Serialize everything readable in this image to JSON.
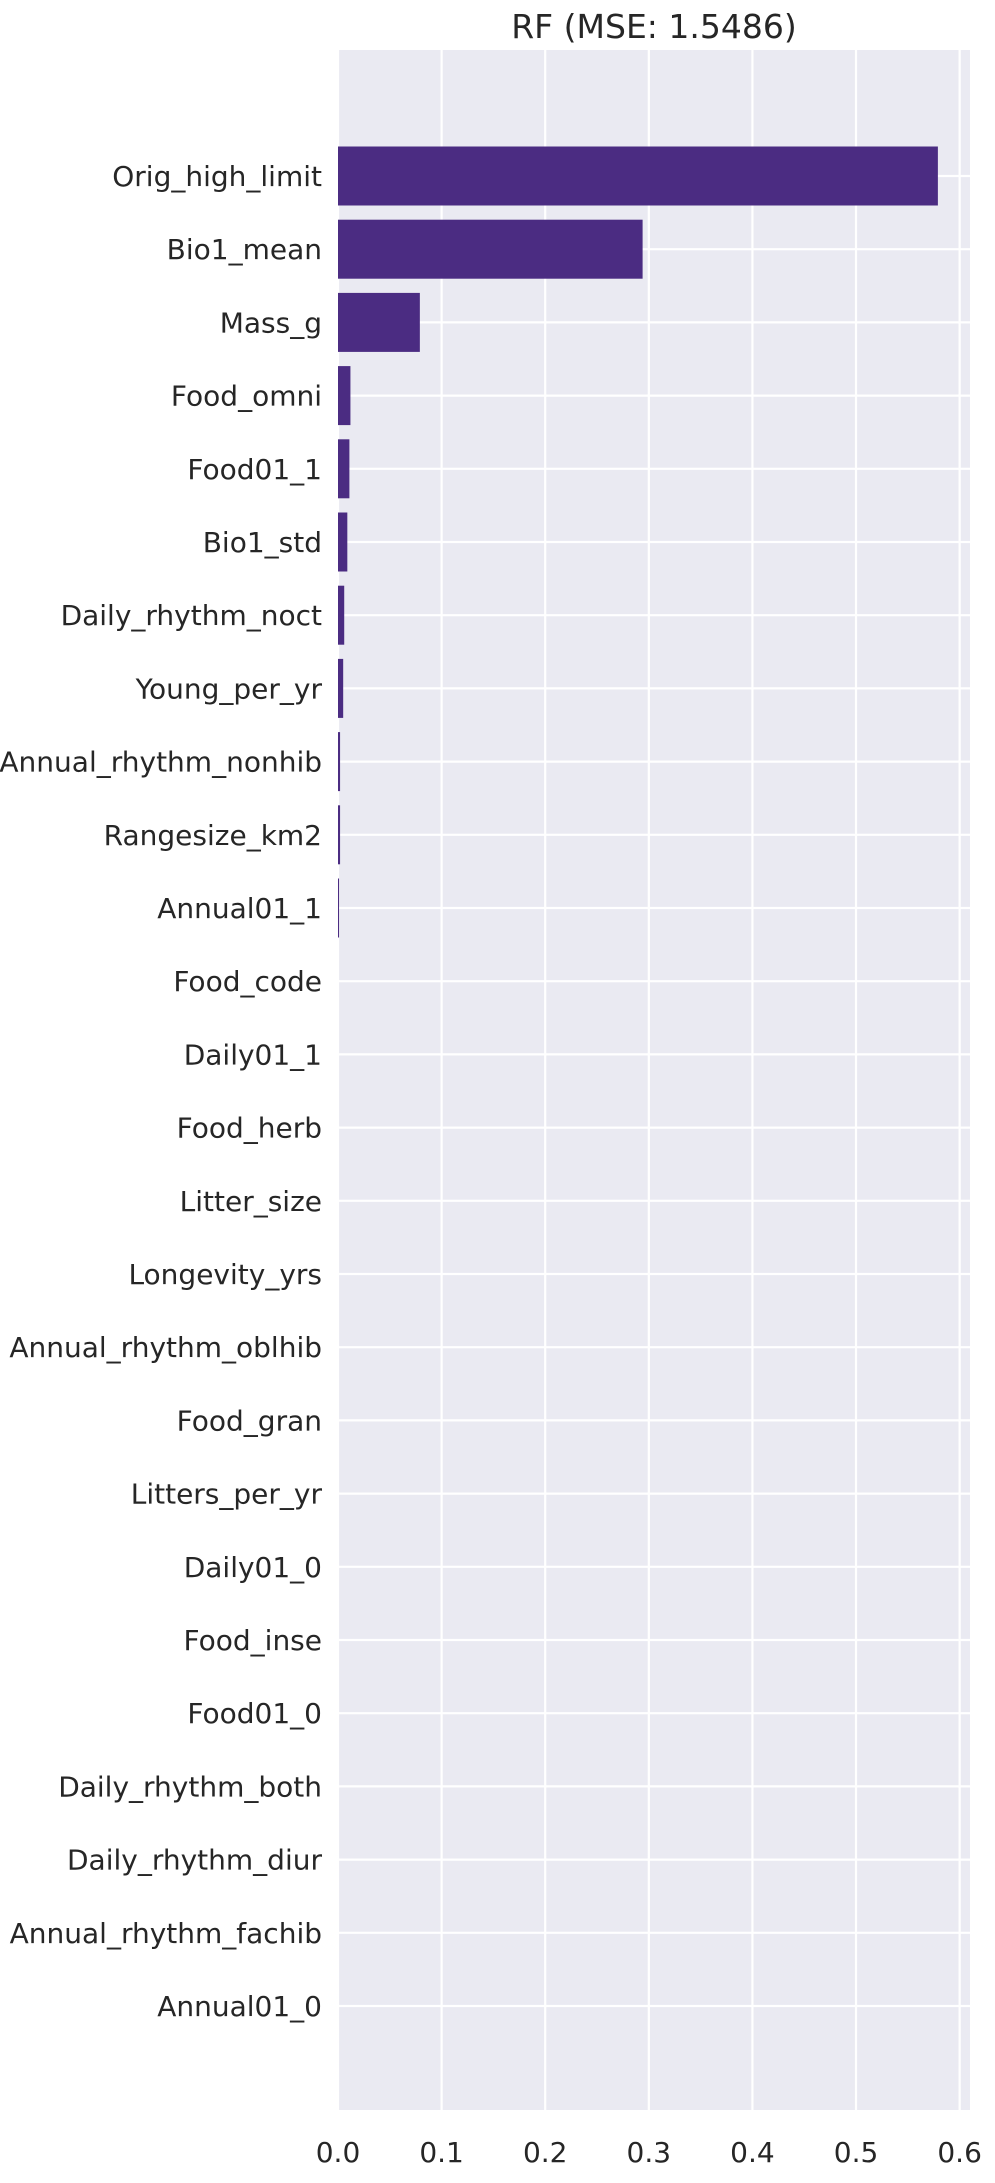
{
  "chart_data": {
    "type": "bar",
    "orientation": "horizontal",
    "title": "RF (MSE: 1.5486)",
    "xlabel": "",
    "ylabel": "",
    "xlim": [
      0,
      0.61
    ],
    "xticks": [
      "0.0",
      "0.1",
      "0.2",
      "0.3",
      "0.4",
      "0.5",
      "0.6"
    ],
    "grid": true,
    "bar_color": "#4b2c82",
    "background_color": "#eaeaf2",
    "categories": [
      "Orig_high_limit",
      "Bio1_mean",
      "Mass_g",
      "Food_omni",
      "Food01_1",
      "Bio1_std",
      "Daily_rhythm_noct",
      "Young_per_yr",
      "Annual_rhythm_nonhib",
      "Rangesize_km2",
      "Annual01_1",
      "Food_code",
      "Daily01_1",
      "Food_herb",
      "Litter_size",
      "Longevity_yrs",
      "Annual_rhythm_oblhib",
      "Food_gran",
      "Litters_per_yr",
      "Daily01_0",
      "Food_inse",
      "Food01_0",
      "Daily_rhythm_both",
      "Daily_rhythm_diur",
      "Annual_rhythm_fachib",
      "Annual01_0"
    ],
    "values": [
      0.579,
      0.294,
      0.079,
      0.012,
      0.011,
      0.009,
      0.006,
      0.005,
      0.002,
      0.002,
      0.001,
      0,
      0,
      0,
      0,
      0,
      0,
      0,
      0,
      0,
      0,
      0,
      0,
      0,
      0,
      0
    ]
  }
}
